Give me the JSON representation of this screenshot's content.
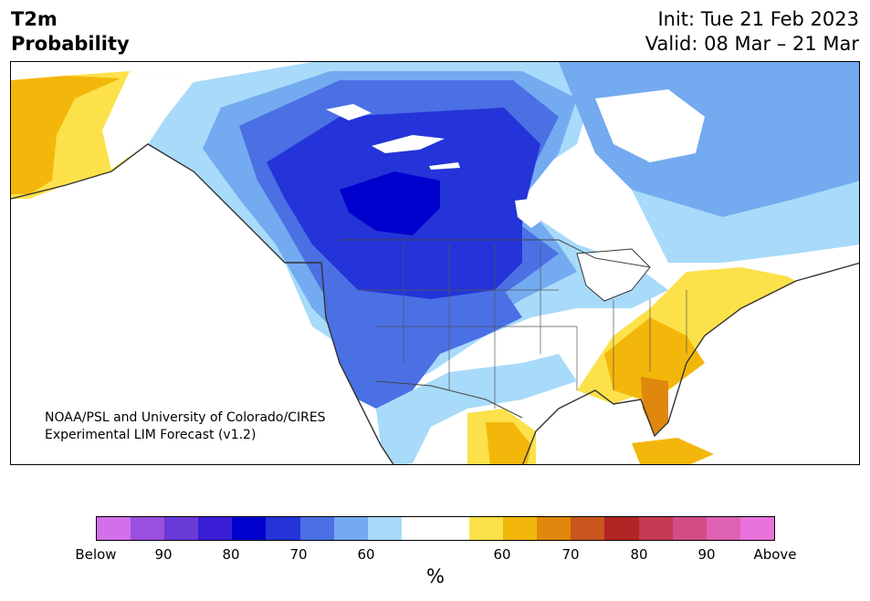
{
  "header": {
    "title_line1": "T2m",
    "title_line2": "Probability",
    "init": "Init: Tue 21 Feb 2023",
    "valid": "Valid: 08 Mar – 21 Mar"
  },
  "credit": {
    "line1": "NOAA/PSL and University of Colorado/CIRES",
    "line2": "Experimental LIM Forecast (v1.2)"
  },
  "colorbar": {
    "unit": "%",
    "colors": [
      "#d36fe8",
      "#9b4fdf",
      "#6a3bd8",
      "#3a1fd6",
      "#0000cc",
      "#2434d8",
      "#4a70e4",
      "#74aaf0",
      "#a8dafa",
      "#ffffff",
      "#ffffff",
      "#fde14a",
      "#f3b70b",
      "#e0880d",
      "#c9561c",
      "#b32424",
      "#c43a52",
      "#d24d84",
      "#de62b4",
      "#e873da"
    ],
    "tick_labels": [
      "Below",
      "90",
      "80",
      "70",
      "60",
      "60",
      "70",
      "80",
      "90",
      "Above"
    ]
  },
  "legend_categories": {
    "below": "Below",
    "above": "Above"
  }
}
